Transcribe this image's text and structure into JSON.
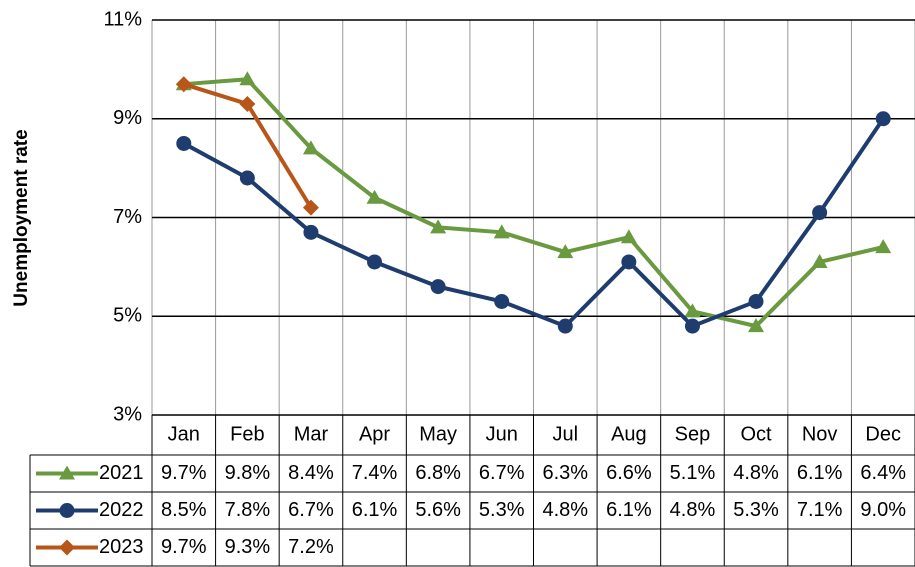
{
  "chart_data": {
    "type": "line",
    "y_label": "Unemployment rate",
    "categories": [
      "Jan",
      "Feb",
      "Mar",
      "Apr",
      "May",
      "Jun",
      "Jul",
      "Aug",
      "Sep",
      "Oct",
      "Nov",
      "Dec"
    ],
    "series": [
      {
        "name": "2021",
        "color": "#6a9a3f",
        "marker": "triangle",
        "values": [
          9.7,
          9.8,
          8.4,
          7.4,
          6.8,
          6.7,
          6.3,
          6.6,
          5.1,
          4.8,
          6.1,
          6.4
        ],
        "value_labels": [
          "9.7%",
          "9.8%",
          "8.4%",
          "7.4%",
          "6.8%",
          "6.7%",
          "6.3%",
          "6.6%",
          "5.1%",
          "4.8%",
          "6.1%",
          "6.4%"
        ]
      },
      {
        "name": "2022",
        "color": "#1f3c6e",
        "marker": "circle",
        "values": [
          8.5,
          7.8,
          6.7,
          6.1,
          5.6,
          5.3,
          4.8,
          6.1,
          4.8,
          5.3,
          7.1,
          9.0
        ],
        "value_labels": [
          "8.5%",
          "7.8%",
          "6.7%",
          "6.1%",
          "5.6%",
          "5.3%",
          "4.8%",
          "6.1%",
          "4.8%",
          "5.3%",
          "7.1%",
          "9.0%"
        ]
      },
      {
        "name": "2023",
        "color": "#b8561a",
        "marker": "diamond",
        "values": [
          9.7,
          9.3,
          7.2,
          null,
          null,
          null,
          null,
          null,
          null,
          null,
          null,
          null
        ],
        "value_labels": [
          "9.7%",
          "9.3%",
          "7.2%",
          null,
          null,
          null,
          null,
          null,
          null,
          null,
          null,
          null
        ]
      }
    ],
    "ylim": [
      3,
      11
    ],
    "yticks": [
      {
        "value": 3,
        "label": "3%"
      },
      {
        "value": 5,
        "label": "5%"
      },
      {
        "value": 7,
        "label": "7%"
      },
      {
        "value": 9,
        "label": "9%"
      },
      {
        "value": 11,
        "label": "11%"
      }
    ],
    "grid": true
  }
}
